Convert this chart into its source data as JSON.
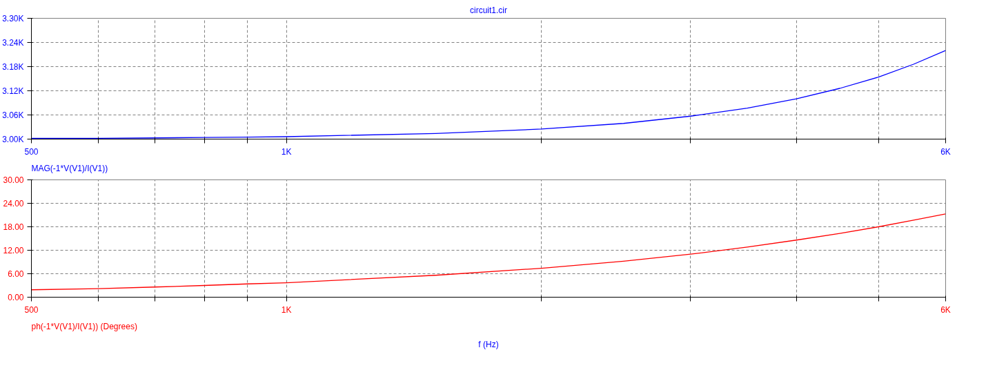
{
  "chart_data": [
    {
      "type": "line",
      "title": "circuit1.cir",
      "log": "x",
      "grid": true,
      "x": [
        500,
        600,
        700,
        800,
        900,
        1000,
        1500,
        2000,
        2500,
        3000,
        3500,
        4000,
        4500,
        5000,
        5500,
        6000
      ],
      "series": [
        {
          "name": "MAG(-1*V(V1)/I(V1))",
          "color": "#0000ff",
          "values": [
            3.002,
            3.002,
            3.003,
            3.004,
            3.005,
            3.006,
            3.014,
            3.025,
            3.039,
            3.057,
            3.077,
            3.1,
            3.126,
            3.154,
            3.186,
            3.22
          ]
        }
      ],
      "xlim": [
        500,
        6000
      ],
      "xticks": [
        {
          "value": 500,
          "label": "500"
        },
        {
          "value": 600,
          "label": null
        },
        {
          "value": 700,
          "label": null
        },
        {
          "value": 800,
          "label": null
        },
        {
          "value": 900,
          "label": null
        },
        {
          "value": 1000,
          "label": "1K"
        },
        {
          "value": 2000,
          "label": null
        },
        {
          "value": 3000,
          "label": null
        },
        {
          "value": 4000,
          "label": null
        },
        {
          "value": 5000,
          "label": null
        },
        {
          "value": 6000,
          "label": "6K"
        }
      ],
      "ylim": [
        3.0,
        3.3
      ],
      "yticks": [
        {
          "value": 3.0,
          "label": "3.00K"
        },
        {
          "value": 3.06,
          "label": "3.06K"
        },
        {
          "value": 3.12,
          "label": "3.12K"
        },
        {
          "value": 3.18,
          "label": "3.18K"
        },
        {
          "value": 3.24,
          "label": "3.24K"
        },
        {
          "value": 3.3,
          "label": "3.30K"
        }
      ]
    },
    {
      "type": "line",
      "xlabel": "f (Hz)",
      "log": "x",
      "grid": true,
      "x": [
        500,
        600,
        700,
        800,
        900,
        1000,
        1500,
        2000,
        2500,
        3000,
        3500,
        4000,
        4500,
        5000,
        5500,
        6000
      ],
      "series": [
        {
          "name": "ph(-1*V(V1)/I(V1)) (Degrees)",
          "color": "#ff0000",
          "values": [
            1.9,
            2.2,
            2.6,
            3.0,
            3.4,
            3.7,
            5.6,
            7.4,
            9.2,
            11.0,
            12.8,
            14.6,
            16.3,
            18.0,
            19.7,
            21.3
          ]
        }
      ],
      "xlim": [
        500,
        6000
      ],
      "xticks": [
        {
          "value": 500,
          "label": "500"
        },
        {
          "value": 600,
          "label": null
        },
        {
          "value": 700,
          "label": null
        },
        {
          "value": 800,
          "label": null
        },
        {
          "value": 900,
          "label": null
        },
        {
          "value": 1000,
          "label": "1K"
        },
        {
          "value": 2000,
          "label": null
        },
        {
          "value": 3000,
          "label": null
        },
        {
          "value": 4000,
          "label": null
        },
        {
          "value": 5000,
          "label": null
        },
        {
          "value": 6000,
          "label": "6K"
        }
      ],
      "ylim": [
        0,
        30
      ],
      "yticks": [
        {
          "value": 0,
          "label": "0.00"
        },
        {
          "value": 6,
          "label": "6.00"
        },
        {
          "value": 12,
          "label": "12.00"
        },
        {
          "value": 18,
          "label": "18.00"
        },
        {
          "value": 24,
          "label": "24.00"
        },
        {
          "value": 30,
          "label": "30.00"
        }
      ]
    }
  ]
}
